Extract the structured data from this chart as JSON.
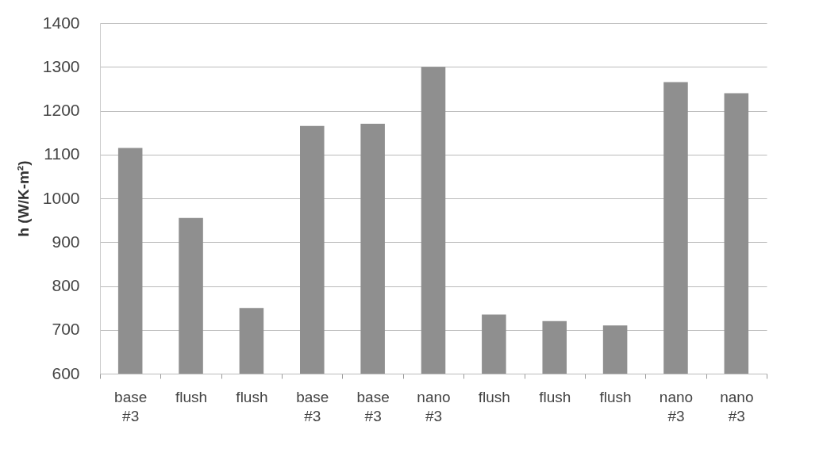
{
  "chart_data": {
    "type": "bar",
    "ylabel": "h (W/K-m²)",
    "categories": [
      "base\n#3",
      "flush",
      "flush",
      "base\n#3",
      "base\n#3",
      "nano\n#3",
      "flush",
      "flush",
      "flush",
      "nano\n#3",
      "nano\n#3"
    ],
    "values": [
      1115,
      955,
      750,
      1165,
      1170,
      1300,
      735,
      720,
      710,
      1265,
      1240
    ],
    "color": "#8f8f8f",
    "ylim": [
      600,
      1400
    ],
    "yticks": [
      600,
      700,
      800,
      900,
      1000,
      1100,
      1200,
      1300,
      1400
    ],
    "grid": "y"
  }
}
